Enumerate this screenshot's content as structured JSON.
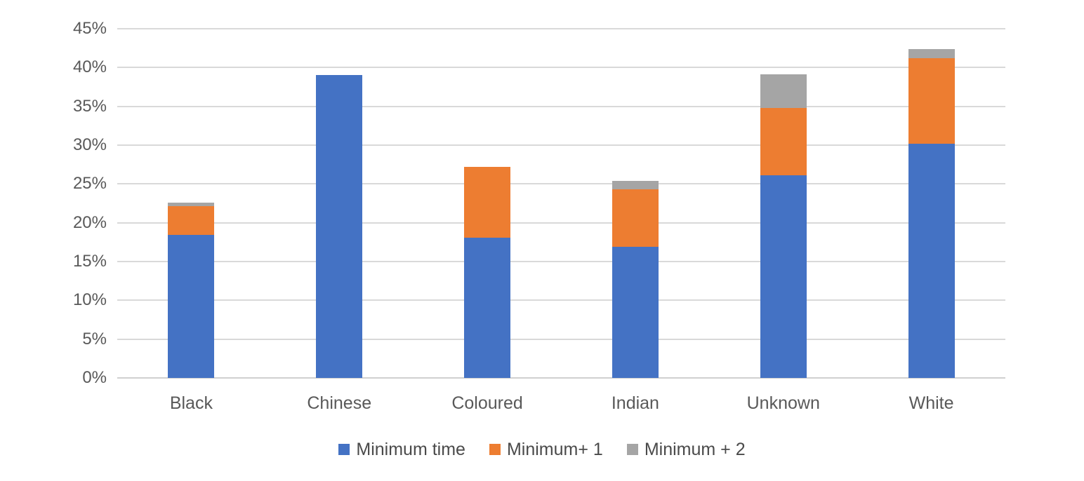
{
  "chart_data": {
    "type": "bar",
    "stacked": true,
    "title": "",
    "xlabel": "",
    "ylabel": "",
    "categories": [
      "Black",
      "Chinese",
      "Coloured",
      "Indian",
      "Unknown",
      "White"
    ],
    "series": [
      {
        "name": "Minimum time",
        "color": "#4472C4",
        "values": [
          18.4,
          39.0,
          18.1,
          16.9,
          26.1,
          30.2
        ]
      },
      {
        "name": "Minimum+ 1",
        "color": "#ED7D31",
        "values": [
          3.7,
          0,
          9.1,
          7.4,
          8.7,
          11.0
        ]
      },
      {
        "name": "Minimum + 2",
        "color": "#A5A5A5",
        "values": [
          0.5,
          0,
          0,
          1.1,
          4.3,
          1.2
        ]
      }
    ],
    "cumulative_tops": {
      "Black": [
        18.4,
        22.1,
        22.6
      ],
      "Chinese": [
        39.0,
        39.0,
        39.0
      ],
      "Coloured": [
        18.1,
        27.2,
        27.2
      ],
      "Indian": [
        16.9,
        24.3,
        25.4
      ],
      "Unknown": [
        26.1,
        34.8,
        39.1
      ],
      "White": [
        30.2,
        41.2,
        42.4
      ]
    },
    "ylim": [
      0,
      45
    ],
    "ytick_step": 5,
    "ytick_labels": [
      "0%",
      "5%",
      "10%",
      "15%",
      "20%",
      "25%",
      "30%",
      "35%",
      "40%",
      "45%"
    ],
    "grid": true,
    "legend_position": "bottom"
  },
  "colors": {
    "gridline": "#D9D9D9",
    "axis_line": "#D0D0D0",
    "tick_text": "#595959",
    "legend_text": "#4a4a4a",
    "background": "#FFFFFF"
  }
}
